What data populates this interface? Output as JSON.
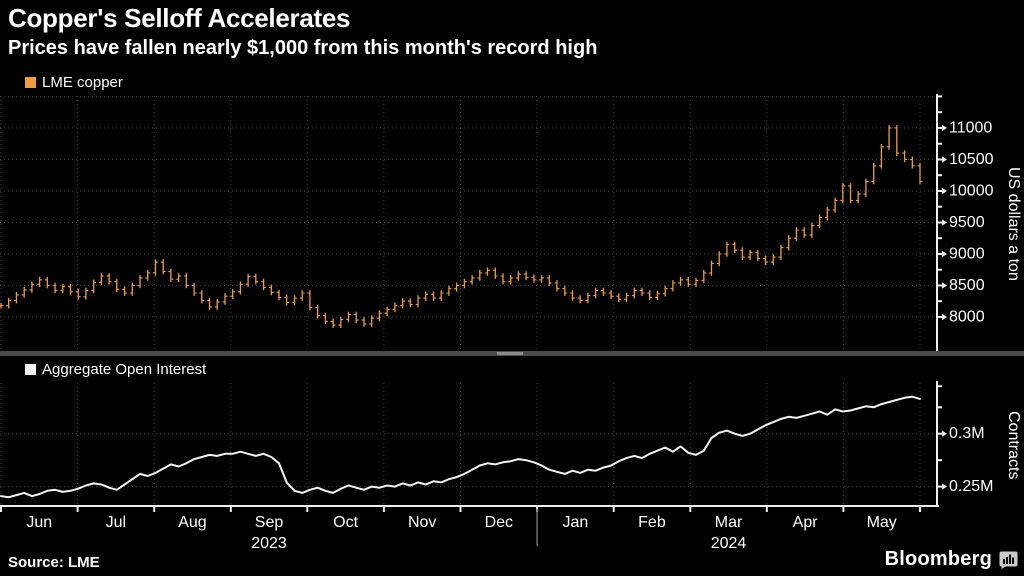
{
  "header": {
    "title": "Copper's Selloff Accelerates",
    "subtitle": "Prices have fallen nearly $1,000 from this month's record high"
  },
  "footer": {
    "source": "Source: LME",
    "brand": "Bloomberg"
  },
  "colors": {
    "background": "#000000",
    "copper": "#EE9D3F",
    "open_interest": "#F2F2F2",
    "grid": "#474747",
    "axis": "#F0F0F0",
    "text": "#FFFFFF",
    "separator": "#4A4A4A",
    "separator_handle": "#8C8C8C",
    "year_divider": "#707070"
  },
  "x_axis": {
    "months": [
      "Jun",
      "Jul",
      "Aug",
      "Sep",
      "Oct",
      "Nov",
      "Dec",
      "Jan",
      "Feb",
      "Mar",
      "Apr",
      "May"
    ],
    "years": [
      {
        "label": "2023",
        "month_index": 3
      },
      {
        "label": "2024",
        "month_index": 9
      }
    ]
  },
  "chart_data": [
    {
      "type": "ohlc-bar",
      "name": "lme-copper-price",
      "legend": "LME copper",
      "ylabel": "US dollars a ton",
      "legend_position": "top-left",
      "grid": true,
      "ylim": [
        7460,
        11507
      ],
      "y_major_ticks": [
        {
          "v": 11000,
          "label": "11000"
        },
        {
          "v": 10500,
          "label": "10500"
        },
        {
          "v": 10000,
          "label": "10000"
        },
        {
          "v": 9500,
          "label": "9500"
        },
        {
          "v": 9000,
          "label": "9000"
        },
        {
          "v": 8500,
          "label": "8500"
        },
        {
          "v": 8000,
          "label": "8000"
        }
      ],
      "y_minor_ticks": [
        11500,
        11250,
        10750,
        10250,
        9750,
        9250,
        8750,
        8250
      ],
      "y_grid_extra": [
        11500
      ],
      "values": [
        8180,
        8260,
        8350,
        8430,
        8520,
        8590,
        8500,
        8420,
        8480,
        8400,
        8320,
        8420,
        8550,
        8650,
        8560,
        8440,
        8380,
        8500,
        8620,
        8700,
        8870,
        8720,
        8600,
        8650,
        8500,
        8380,
        8260,
        8160,
        8240,
        8330,
        8400,
        8520,
        8640,
        8560,
        8470,
        8390,
        8310,
        8230,
        8300,
        8380,
        8150,
        8020,
        7930,
        7870,
        7960,
        8040,
        7950,
        7890,
        7980,
        8060,
        8120,
        8180,
        8250,
        8200,
        8300,
        8360,
        8300,
        8380,
        8450,
        8500,
        8560,
        8620,
        8700,
        8740,
        8650,
        8560,
        8620,
        8680,
        8630,
        8590,
        8620,
        8540,
        8450,
        8380,
        8300,
        8260,
        8340,
        8420,
        8380,
        8330,
        8280,
        8340,
        8420,
        8380,
        8310,
        8370,
        8450,
        8540,
        8590,
        8520,
        8580,
        8700,
        8850,
        9000,
        9150,
        9060,
        8950,
        9020,
        8930,
        8870,
        8950,
        9100,
        9250,
        9380,
        9300,
        9450,
        9580,
        9700,
        9850,
        10080,
        9850,
        9950,
        10150,
        10400,
        10700,
        11000,
        10600,
        10500,
        10400,
        10150
      ]
    },
    {
      "type": "line",
      "name": "aggregate-open-interest",
      "legend": "Aggregate Open Interest",
      "ylabel": "Contracts",
      "legend_position": "top-left",
      "grid": true,
      "ylim": [
        0.2307,
        0.348
      ],
      "y_major_ticks": [
        {
          "v": 0.3,
          "label": "0.3M"
        },
        {
          "v": 0.25,
          "label": "0.25M"
        }
      ],
      "y_minor_ticks": [
        0.345,
        0.325,
        0.275
      ],
      "y_grid_extra": [],
      "values": [
        0.241,
        0.24,
        0.242,
        0.244,
        0.241,
        0.243,
        0.246,
        0.247,
        0.245,
        0.246,
        0.248,
        0.251,
        0.253,
        0.252,
        0.249,
        0.247,
        0.252,
        0.257,
        0.262,
        0.26,
        0.263,
        0.267,
        0.271,
        0.269,
        0.272,
        0.276,
        0.278,
        0.28,
        0.279,
        0.281,
        0.281,
        0.283,
        0.281,
        0.279,
        0.281,
        0.278,
        0.272,
        0.254,
        0.246,
        0.244,
        0.247,
        0.249,
        0.246,
        0.244,
        0.248,
        0.251,
        0.249,
        0.247,
        0.25,
        0.249,
        0.251,
        0.25,
        0.253,
        0.251,
        0.254,
        0.252,
        0.255,
        0.254,
        0.257,
        0.259,
        0.262,
        0.266,
        0.27,
        0.272,
        0.271,
        0.273,
        0.274,
        0.276,
        0.275,
        0.273,
        0.27,
        0.266,
        0.264,
        0.262,
        0.265,
        0.263,
        0.266,
        0.265,
        0.268,
        0.27,
        0.274,
        0.277,
        0.279,
        0.277,
        0.281,
        0.284,
        0.287,
        0.283,
        0.288,
        0.282,
        0.28,
        0.284,
        0.296,
        0.301,
        0.303,
        0.3,
        0.298,
        0.3,
        0.304,
        0.308,
        0.311,
        0.314,
        0.316,
        0.315,
        0.317,
        0.319,
        0.321,
        0.318,
        0.323,
        0.321,
        0.322,
        0.324,
        0.326,
        0.325,
        0.328,
        0.33,
        0.332,
        0.334,
        0.335,
        0.333
      ]
    }
  ]
}
